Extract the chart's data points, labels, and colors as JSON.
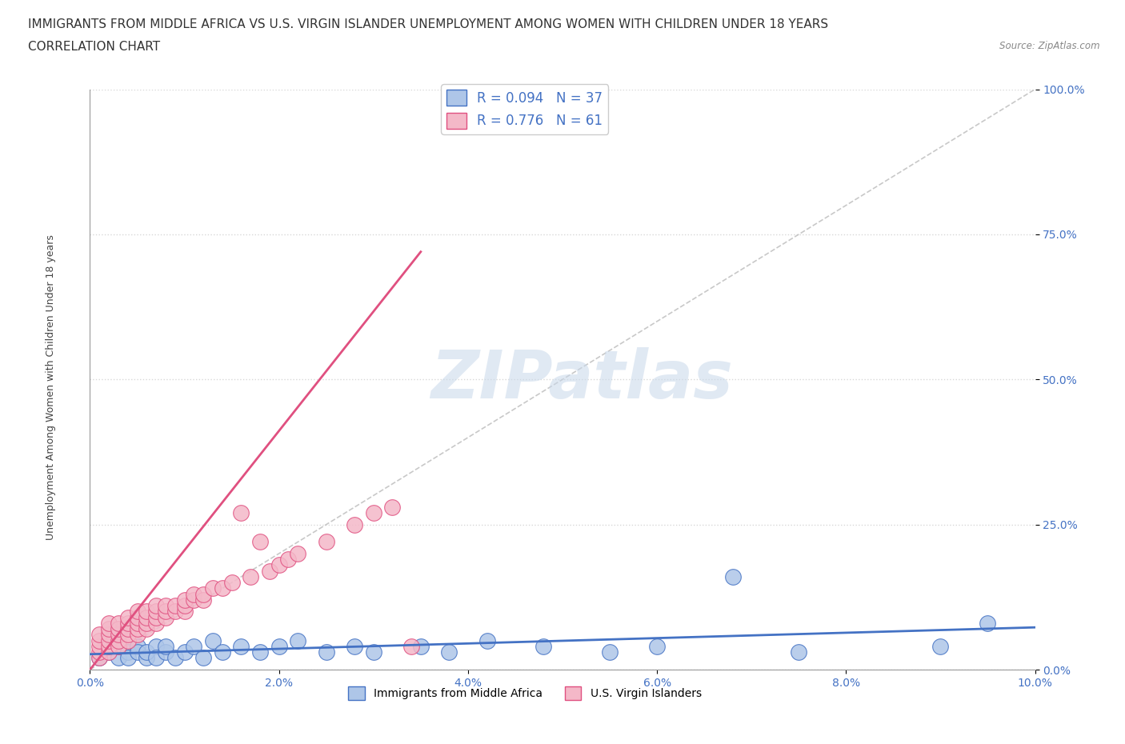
{
  "title_line1": "IMMIGRANTS FROM MIDDLE AFRICA VS U.S. VIRGIN ISLANDER UNEMPLOYMENT AMONG WOMEN WITH CHILDREN UNDER 18 YEARS",
  "title_line2": "CORRELATION CHART",
  "source_text": "Source: ZipAtlas.com",
  "ylabel": "Unemployment Among Women with Children Under 18 years",
  "xlim": [
    0.0,
    0.1
  ],
  "ylim": [
    0.0,
    1.0
  ],
  "xticks": [
    0.0,
    0.02,
    0.04,
    0.06,
    0.08,
    0.1
  ],
  "xtick_labels": [
    "0.0%",
    "2.0%",
    "4.0%",
    "6.0%",
    "8.0%",
    "10.0%"
  ],
  "yticks": [
    0.0,
    0.25,
    0.5,
    0.75,
    1.0
  ],
  "ytick_labels": [
    "0.0%",
    "25.0%",
    "50.0%",
    "75.0%",
    "100.0%"
  ],
  "blue_R": 0.094,
  "blue_N": 37,
  "pink_R": 0.776,
  "pink_N": 61,
  "blue_color": "#aec6e8",
  "blue_edge_color": "#4472c4",
  "pink_color": "#f4b8c8",
  "pink_edge_color": "#e05080",
  "blue_line_color": "#4472c4",
  "pink_line_color": "#e05080",
  "legend_color": "#4472c4",
  "background_color": "#ffffff",
  "grid_color": "#d8d8d8",
  "ref_line_color": "#bbbbbb",
  "blue_scatter_x": [
    0.001,
    0.002,
    0.003,
    0.003,
    0.004,
    0.004,
    0.005,
    0.005,
    0.006,
    0.006,
    0.007,
    0.007,
    0.008,
    0.008,
    0.009,
    0.01,
    0.011,
    0.012,
    0.013,
    0.014,
    0.016,
    0.018,
    0.02,
    0.022,
    0.025,
    0.028,
    0.03,
    0.035,
    0.038,
    0.042,
    0.048,
    0.055,
    0.06,
    0.068,
    0.075,
    0.09,
    0.095
  ],
  "blue_scatter_y": [
    0.02,
    0.03,
    0.02,
    0.04,
    0.03,
    0.02,
    0.04,
    0.03,
    0.02,
    0.03,
    0.04,
    0.02,
    0.03,
    0.04,
    0.02,
    0.03,
    0.04,
    0.02,
    0.05,
    0.03,
    0.04,
    0.03,
    0.04,
    0.05,
    0.03,
    0.04,
    0.03,
    0.04,
    0.03,
    0.05,
    0.04,
    0.03,
    0.04,
    0.16,
    0.03,
    0.04,
    0.08
  ],
  "pink_scatter_x": [
    0.001,
    0.001,
    0.001,
    0.001,
    0.001,
    0.002,
    0.002,
    0.002,
    0.002,
    0.002,
    0.002,
    0.003,
    0.003,
    0.003,
    0.003,
    0.003,
    0.004,
    0.004,
    0.004,
    0.004,
    0.004,
    0.005,
    0.005,
    0.005,
    0.005,
    0.005,
    0.006,
    0.006,
    0.006,
    0.006,
    0.007,
    0.007,
    0.007,
    0.007,
    0.008,
    0.008,
    0.008,
    0.009,
    0.009,
    0.01,
    0.01,
    0.01,
    0.011,
    0.011,
    0.012,
    0.012,
    0.013,
    0.014,
    0.015,
    0.016,
    0.017,
    0.018,
    0.019,
    0.02,
    0.021,
    0.022,
    0.025,
    0.028,
    0.03,
    0.032,
    0.034
  ],
  "pink_scatter_y": [
    0.02,
    0.03,
    0.04,
    0.05,
    0.06,
    0.03,
    0.04,
    0.05,
    0.06,
    0.07,
    0.08,
    0.04,
    0.05,
    0.06,
    0.07,
    0.08,
    0.05,
    0.06,
    0.07,
    0.08,
    0.09,
    0.06,
    0.07,
    0.08,
    0.09,
    0.1,
    0.07,
    0.08,
    0.09,
    0.1,
    0.08,
    0.09,
    0.1,
    0.11,
    0.09,
    0.1,
    0.11,
    0.1,
    0.11,
    0.1,
    0.11,
    0.12,
    0.12,
    0.13,
    0.12,
    0.13,
    0.14,
    0.14,
    0.15,
    0.27,
    0.16,
    0.22,
    0.17,
    0.18,
    0.19,
    0.2,
    0.22,
    0.25,
    0.27,
    0.28,
    0.04
  ],
  "pink_line_x": [
    0.0,
    0.035
  ],
  "pink_line_y": [
    0.0,
    0.72
  ],
  "blue_line_x": [
    0.0,
    0.1
  ],
  "blue_line_y": [
    0.03,
    0.04
  ],
  "watermark_text": "ZIPatlas",
  "watermark_color": "#c8d8ea",
  "watermark_alpha": 0.55,
  "title_fontsize": 11,
  "axis_label_fontsize": 9,
  "tick_fontsize": 10
}
